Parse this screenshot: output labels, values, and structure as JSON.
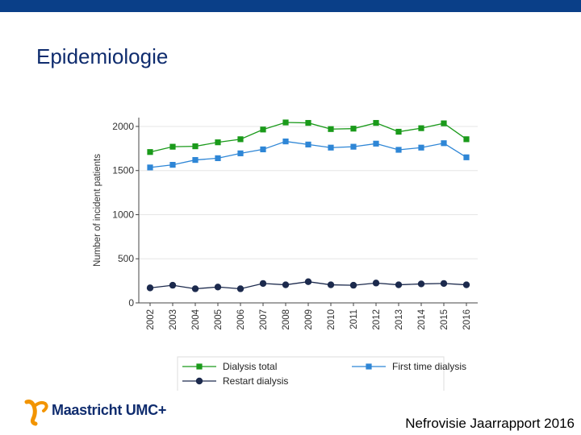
{
  "slide": {
    "title": "Epidemiologie",
    "footer": "Nefrovisie Jaarrapport 2016",
    "logo_text": "Maastricht UMC+"
  },
  "colors": {
    "top_bar": "#0a3f88",
    "title": "#0f2c6e",
    "logo_orange": "#f29400",
    "logo_navy": "#0f2c6e"
  },
  "chart_data": {
    "type": "line",
    "title": "",
    "xlabel": "",
    "ylabel": "Number of incident patients",
    "ylim": [
      0,
      2100
    ],
    "yticks": [
      0,
      500,
      1000,
      1500,
      2000
    ],
    "x": [
      "2002",
      "2003",
      "2004",
      "2005",
      "2006",
      "2007",
      "2008",
      "2009",
      "2010",
      "2011",
      "2012",
      "2013",
      "2014",
      "2015",
      "2016"
    ],
    "grid": true,
    "legend_position": "bottom",
    "series": [
      {
        "name": "Dialysis total",
        "color": "#1a9a1a",
        "marker": "square",
        "values": [
          1710,
          1770,
          1775,
          1820,
          1855,
          1965,
          2045,
          2040,
          1970,
          1975,
          2040,
          1940,
          1980,
          2035,
          1855
        ]
      },
      {
        "name": "First time dialysis",
        "color": "#2e86d6",
        "marker": "square",
        "values": [
          1535,
          1565,
          1620,
          1640,
          1695,
          1740,
          1830,
          1795,
          1760,
          1770,
          1805,
          1735,
          1760,
          1810,
          1650
        ]
      },
      {
        "name": "Restart dialysis",
        "color": "#1c2a4d",
        "marker": "circle",
        "values": [
          170,
          200,
          160,
          180,
          160,
          220,
          205,
          240,
          205,
          200,
          225,
          205,
          215,
          220,
          205
        ]
      }
    ]
  }
}
